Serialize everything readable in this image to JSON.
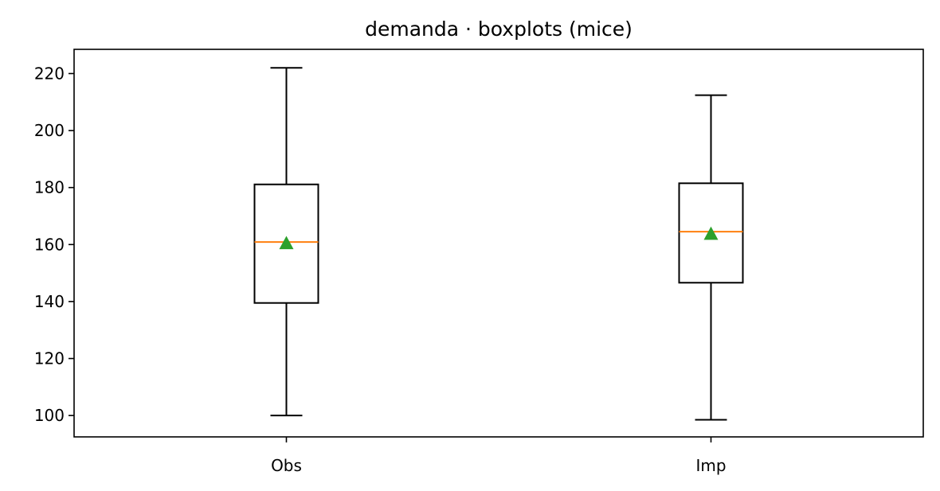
{
  "chart_data": {
    "type": "boxplot",
    "title": "demanda · boxplots (mice)",
    "xlabel": "",
    "ylabel": "",
    "categories": [
      "Obs",
      "Imp"
    ],
    "ylim": [
      92.5,
      228.5
    ],
    "yticks": [
      100,
      120,
      140,
      160,
      180,
      200,
      220
    ],
    "grid": false,
    "legend": "none",
    "boxes": [
      {
        "label": "Obs",
        "whisker_low": 100,
        "q1": 139.5,
        "median": 160.9,
        "q3": 181.1,
        "whisker_high": 222,
        "mean": 160.5
      },
      {
        "label": "Imp",
        "whisker_low": 98.5,
        "q1": 146.6,
        "median": 164.5,
        "q3": 181.5,
        "whisker_high": 212.4,
        "mean": 163.8
      }
    ],
    "colors": {
      "box": "#000000",
      "median": "#ff7f0e",
      "mean": "#2ca02c"
    }
  }
}
